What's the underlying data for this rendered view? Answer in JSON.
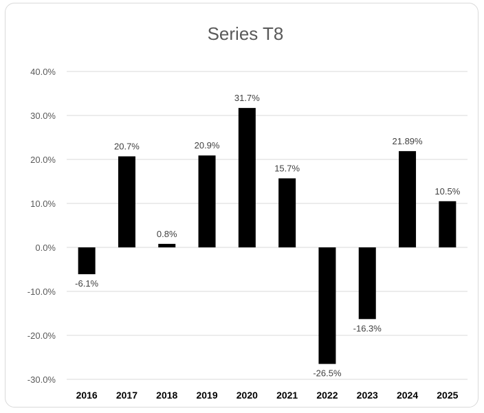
{
  "chart_data": {
    "type": "bar",
    "title": "Series T8",
    "xlabel": "",
    "ylabel": "",
    "categories": [
      "2016",
      "2017",
      "2018",
      "2019",
      "2020",
      "2021",
      "2022",
      "2023",
      "2024",
      "2025"
    ],
    "values": [
      -6.1,
      20.7,
      0.8,
      20.9,
      31.7,
      15.7,
      -26.5,
      -16.3,
      21.89,
      10.5
    ],
    "data_labels": [
      "-6.1%",
      "20.7%",
      "0.8%",
      "20.9%",
      "31.7%",
      "15.7%",
      "-26.5%",
      "-16.3%",
      "21.89%",
      "10.5%"
    ],
    "ylim": [
      -30,
      40
    ],
    "yticks": [
      40,
      30,
      20,
      10,
      0,
      -10,
      -20,
      -30
    ],
    "ytick_labels": [
      "40.0%",
      "30.0%",
      "20.0%",
      "10.0%",
      "0.0%",
      "-10.0%",
      "-20.0%",
      "-30.0%"
    ],
    "grid": true,
    "legend": "none",
    "colors": {
      "bar": "#000000",
      "grid": "#d9d9d9",
      "title": "#595959"
    }
  }
}
